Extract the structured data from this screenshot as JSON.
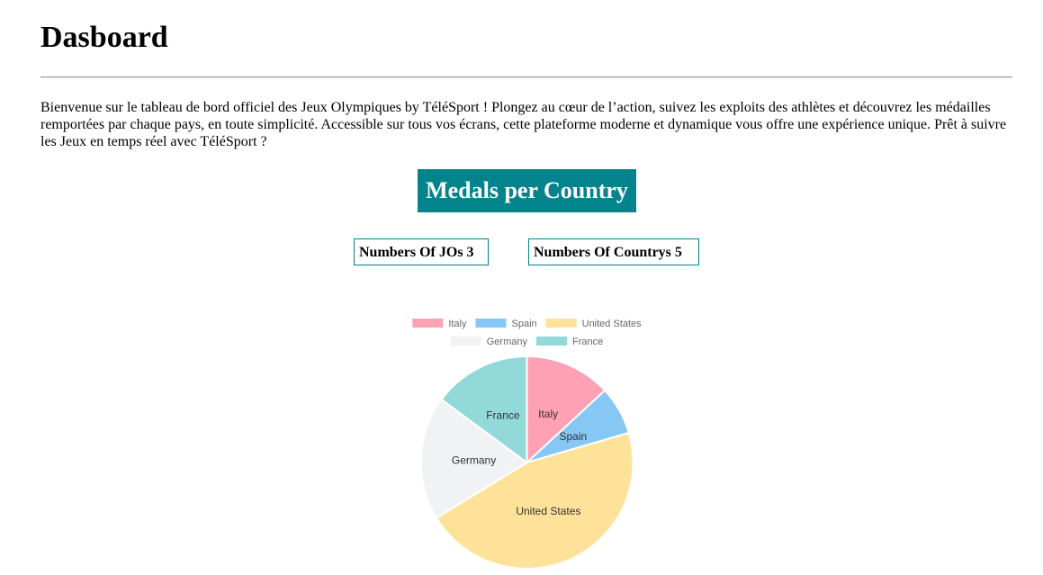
{
  "header": {
    "title": "Dasboard"
  },
  "intro": {
    "text": "Bienvenue sur le tableau de bord officiel des Jeux Olympiques by TéléSport ! Plongez au cœur de l’action, suivez les exploits des athlètes et découvrez les médailles remportées par chaque pays, en toute simplicité. Accessible sur tous vos écrans, cette plateforme moderne et dynamique vous offre une expérience unique. Prêt à suivre les Jeux en temps réel avec TéléSport ?"
  },
  "stats": {
    "jos_label": "Numbers Of JOs 3",
    "countries_label": "Numbers Of Countrys 5"
  },
  "colors": {
    "accent": "#03848c"
  },
  "chart_data": {
    "type": "pie",
    "title": "Medals per Country",
    "legend_placement": "top",
    "categories": [
      "Italy",
      "Spain",
      "United States",
      "Germany",
      "France"
    ],
    "values": [
      96,
      54,
      335,
      138,
      109
    ],
    "colors": [
      "#ffa1b5",
      "#86c7f3",
      "#ffe29a",
      "#f1f2f4",
      "#93d9d9"
    ],
    "text_color": "#333333",
    "legend_text_color": "#666666"
  }
}
